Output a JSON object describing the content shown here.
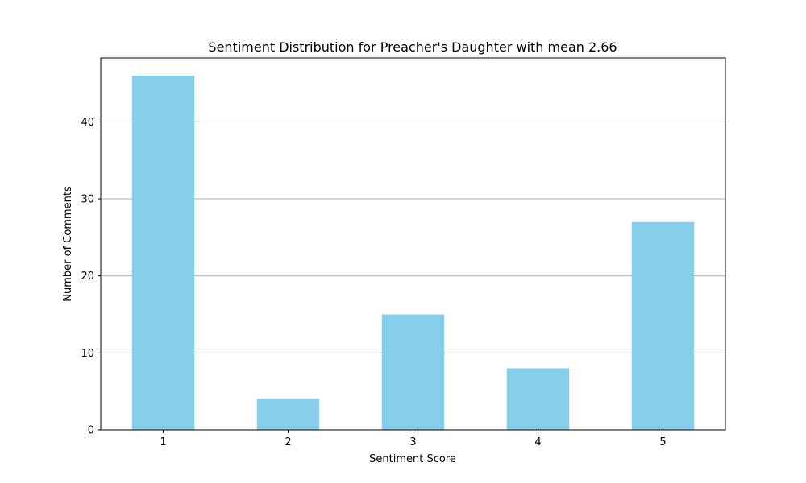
{
  "chart_data": {
    "type": "bar",
    "title": "Sentiment Distribution for Preacher's Daughter with mean 2.66",
    "xlabel": "Sentiment Score",
    "ylabel": "Number of Comments",
    "categories": [
      "1",
      "2",
      "3",
      "4",
      "5"
    ],
    "values": [
      46,
      4,
      15,
      8,
      27
    ],
    "ylim": [
      0,
      48.3
    ],
    "yticks": [
      "0",
      "10",
      "20",
      "30",
      "40"
    ],
    "grid": "horizontal",
    "bar_color": "#87ceeb"
  }
}
